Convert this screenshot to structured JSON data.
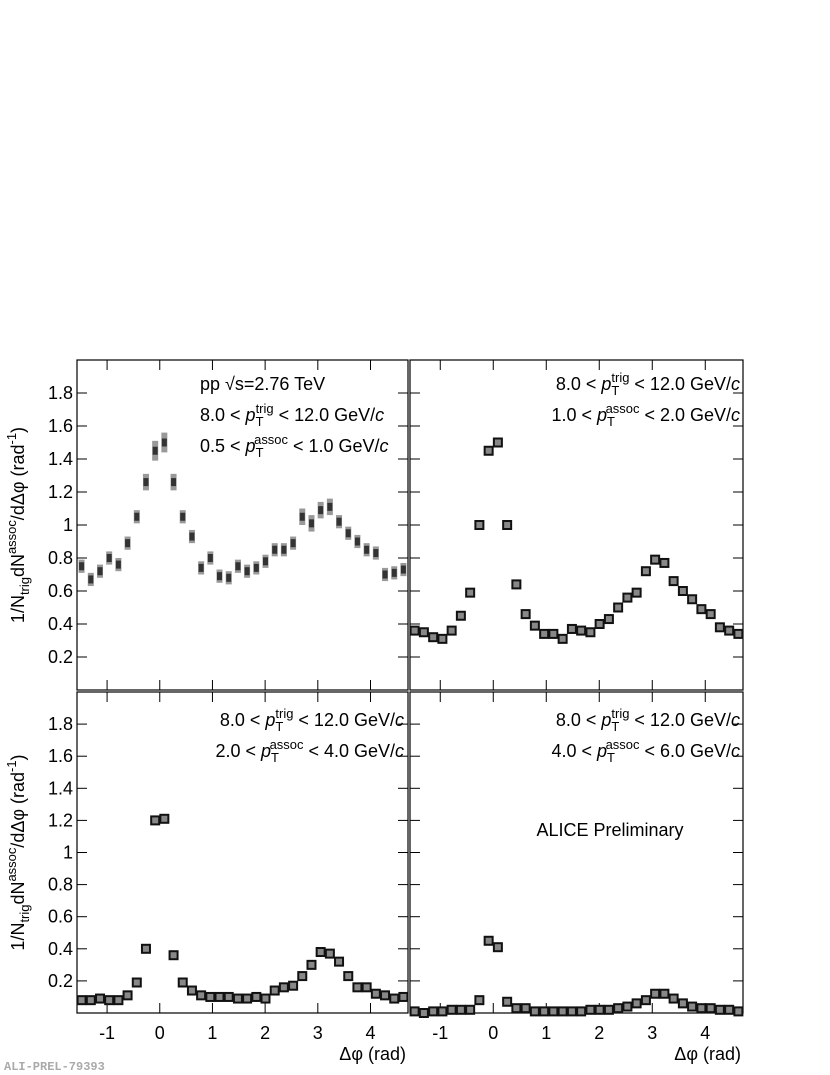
{
  "chart_data": [
    {
      "type": "scatter",
      "marker": "bar",
      "color": "#333333",
      "error_color": "#999999",
      "ylabel": [
        {
          "t": "1/N"
        },
        {
          "t": "trig",
          "s": "sub"
        },
        {
          "t": "dN"
        },
        {
          "t": "assoc",
          "s": "sup"
        },
        {
          "t": "/dΔφ (rad"
        },
        {
          "t": "-1",
          "s": "sup"
        },
        {
          "t": ")"
        }
      ],
      "annotations": [
        [
          {
            "t": "pp √s=2.76 TeV"
          }
        ],
        [
          {
            "t": "8.0 < "
          },
          {
            "t": "p",
            "s": "i"
          },
          {
            "t": "T",
            "s": "sub"
          },
          {
            "t": "trig",
            "s": "sup"
          },
          {
            "t": " < 12.0 GeV/"
          },
          {
            "t": "c",
            "s": "i"
          }
        ],
        [
          {
            "t": "0.5 < "
          },
          {
            "t": "p",
            "s": "i"
          },
          {
            "t": "T",
            "s": "sub"
          },
          {
            "t": "assoc",
            "s": "sup"
          },
          {
            "t": " < 1.0 GeV/"
          },
          {
            "t": "c",
            "s": "i"
          }
        ]
      ],
      "xlim": [
        -1.571,
        4.712
      ],
      "xticks": [
        -1,
        0,
        1,
        2,
        3,
        4
      ],
      "xtick_labels": false,
      "ylim": [
        0,
        2
      ],
      "yticks": [
        0.2,
        0.4,
        0.6,
        0.8,
        1,
        1.2,
        1.4,
        1.6,
        1.8
      ],
      "ytick_labels": true,
      "x": [
        -1.484,
        -1.309,
        -1.134,
        -0.96,
        -0.785,
        -0.611,
        -0.436,
        -0.262,
        -0.087,
        0.087,
        0.262,
        0.436,
        0.611,
        0.785,
        0.96,
        1.134,
        1.309,
        1.484,
        1.658,
        1.833,
        2.007,
        2.182,
        2.356,
        2.531,
        2.705,
        2.88,
        3.054,
        3.229,
        3.403,
        3.578,
        3.752,
        3.927,
        4.102,
        4.276,
        4.451,
        4.625
      ],
      "values": [
        0.75,
        0.67,
        0.72,
        0.8,
        0.76,
        0.89,
        1.05,
        1.26,
        1.45,
        1.5,
        1.26,
        1.05,
        0.93,
        0.74,
        0.8,
        0.69,
        0.68,
        0.75,
        0.72,
        0.74,
        0.78,
        0.85,
        0.85,
        0.89,
        1.05,
        1.01,
        1.09,
        1.11,
        1.02,
        0.95,
        0.9,
        0.85,
        0.83,
        0.7,
        0.71,
        0.73
      ],
      "errors": [
        0.04,
        0.04,
        0.04,
        0.04,
        0.04,
        0.04,
        0.04,
        0.05,
        0.06,
        0.06,
        0.05,
        0.04,
        0.04,
        0.04,
        0.04,
        0.04,
        0.04,
        0.04,
        0.04,
        0.04,
        0.04,
        0.04,
        0.04,
        0.04,
        0.05,
        0.05,
        0.05,
        0.05,
        0.04,
        0.04,
        0.04,
        0.04,
        0.04,
        0.04,
        0.04,
        0.04
      ]
    },
    {
      "type": "scatter",
      "marker": "square",
      "color": "#888888",
      "annotations": [
        [
          {
            "t": "8.0 < "
          },
          {
            "t": "p",
            "s": "i"
          },
          {
            "t": "T",
            "s": "sub"
          },
          {
            "t": "trig",
            "s": "sup"
          },
          {
            "t": " < 12.0 GeV/"
          },
          {
            "t": "c",
            "s": "i"
          }
        ],
        [
          {
            "t": "1.0 < "
          },
          {
            "t": "p",
            "s": "i"
          },
          {
            "t": "T",
            "s": "sub"
          },
          {
            "t": "assoc",
            "s": "sup"
          },
          {
            "t": " < 2.0 GeV/"
          },
          {
            "t": "c",
            "s": "i"
          }
        ]
      ],
      "xlim": [
        -1.571,
        4.712
      ],
      "xticks": [
        -1,
        0,
        1,
        2,
        3,
        4
      ],
      "xtick_labels": false,
      "ylim": [
        0,
        2
      ],
      "yticks": [
        0.2,
        0.4,
        0.6,
        0.8,
        1,
        1.2,
        1.4,
        1.6,
        1.8
      ],
      "ytick_labels": false,
      "x": [
        -1.484,
        -1.309,
        -1.134,
        -0.96,
        -0.785,
        -0.611,
        -0.436,
        -0.262,
        -0.087,
        0.087,
        0.262,
        0.436,
        0.611,
        0.785,
        0.96,
        1.134,
        1.309,
        1.484,
        1.658,
        1.833,
        2.007,
        2.182,
        2.356,
        2.531,
        2.705,
        2.88,
        3.054,
        3.229,
        3.403,
        3.578,
        3.752,
        3.927,
        4.102,
        4.276,
        4.451,
        4.625
      ],
      "values": [
        0.36,
        0.35,
        0.32,
        0.31,
        0.36,
        0.45,
        0.59,
        1.0,
        1.45,
        1.5,
        1.0,
        0.64,
        0.46,
        0.39,
        0.34,
        0.34,
        0.31,
        0.37,
        0.36,
        0.35,
        0.4,
        0.43,
        0.5,
        0.56,
        0.59,
        0.72,
        0.79,
        0.77,
        0.66,
        0.6,
        0.55,
        0.49,
        0.46,
        0.38,
        0.36,
        0.34
      ]
    },
    {
      "type": "scatter",
      "marker": "square",
      "color": "#888888",
      "ylabel": [
        {
          "t": "1/N"
        },
        {
          "t": "trig",
          "s": "sub"
        },
        {
          "t": "dN"
        },
        {
          "t": "assoc",
          "s": "sup"
        },
        {
          "t": "/dΔφ (rad"
        },
        {
          "t": "-1",
          "s": "sup"
        },
        {
          "t": ")"
        }
      ],
      "xlabel": "Δφ (rad)",
      "annotations": [
        [
          {
            "t": "8.0 < "
          },
          {
            "t": "p",
            "s": "i"
          },
          {
            "t": "T",
            "s": "sub"
          },
          {
            "t": "trig",
            "s": "sup"
          },
          {
            "t": " < 12.0 GeV/"
          },
          {
            "t": "c",
            "s": "i"
          }
        ],
        [
          {
            "t": "2.0 < "
          },
          {
            "t": "p",
            "s": "i"
          },
          {
            "t": "T",
            "s": "sub"
          },
          {
            "t": "assoc",
            "s": "sup"
          },
          {
            "t": " < 4.0 GeV/"
          },
          {
            "t": "c",
            "s": "i"
          }
        ]
      ],
      "xlim": [
        -1.571,
        4.712
      ],
      "xticks": [
        -1,
        0,
        1,
        2,
        3,
        4
      ],
      "xtick_labels": true,
      "ylim": [
        0,
        2
      ],
      "yticks": [
        0.2,
        0.4,
        0.6,
        0.8,
        1,
        1.2,
        1.4,
        1.6,
        1.8
      ],
      "ytick_labels": true,
      "x": [
        -1.484,
        -1.309,
        -1.134,
        -0.96,
        -0.785,
        -0.611,
        -0.436,
        -0.262,
        -0.087,
        0.087,
        0.262,
        0.436,
        0.611,
        0.785,
        0.96,
        1.134,
        1.309,
        1.484,
        1.658,
        1.833,
        2.007,
        2.182,
        2.356,
        2.531,
        2.705,
        2.88,
        3.054,
        3.229,
        3.403,
        3.578,
        3.752,
        3.927,
        4.102,
        4.276,
        4.451,
        4.625
      ],
      "values": [
        0.08,
        0.08,
        0.09,
        0.08,
        0.08,
        0.11,
        0.19,
        0.4,
        1.2,
        1.21,
        0.36,
        0.19,
        0.14,
        0.11,
        0.1,
        0.1,
        0.1,
        0.09,
        0.09,
        0.1,
        0.09,
        0.14,
        0.16,
        0.17,
        0.23,
        0.3,
        0.38,
        0.37,
        0.32,
        0.23,
        0.16,
        0.16,
        0.12,
        0.11,
        0.09,
        0.1
      ]
    },
    {
      "type": "scatter",
      "marker": "square",
      "color": "#888888",
      "xlabel": "Δφ (rad)",
      "label": "ALICE Preliminary",
      "annotations": [
        [
          {
            "t": "8.0 < "
          },
          {
            "t": "p",
            "s": "i"
          },
          {
            "t": "T",
            "s": "sub"
          },
          {
            "t": "trig",
            "s": "sup"
          },
          {
            "t": " < 12.0 GeV/"
          },
          {
            "t": "c",
            "s": "i"
          }
        ],
        [
          {
            "t": "4.0 < "
          },
          {
            "t": "p",
            "s": "i"
          },
          {
            "t": "T",
            "s": "sub"
          },
          {
            "t": "assoc",
            "s": "sup"
          },
          {
            "t": " < 6.0 GeV/"
          },
          {
            "t": "c",
            "s": "i"
          }
        ]
      ],
      "xlim": [
        -1.571,
        4.712
      ],
      "xticks": [
        -1,
        0,
        1,
        2,
        3,
        4
      ],
      "xtick_labels": true,
      "ylim": [
        0,
        2
      ],
      "yticks": [
        0.2,
        0.4,
        0.6,
        0.8,
        1,
        1.2,
        1.4,
        1.6,
        1.8
      ],
      "ytick_labels": false,
      "x": [
        -1.484,
        -1.309,
        -1.134,
        -0.96,
        -0.785,
        -0.611,
        -0.436,
        -0.262,
        -0.087,
        0.087,
        0.262,
        0.436,
        0.611,
        0.785,
        0.96,
        1.134,
        1.309,
        1.484,
        1.658,
        1.833,
        2.007,
        2.182,
        2.356,
        2.531,
        2.705,
        2.88,
        3.054,
        3.229,
        3.403,
        3.578,
        3.752,
        3.927,
        4.102,
        4.276,
        4.451,
        4.625
      ],
      "values": [
        0.01,
        0.0,
        0.01,
        0.01,
        0.02,
        0.02,
        0.02,
        0.08,
        0.45,
        0.41,
        0.07,
        0.03,
        0.03,
        0.01,
        0.01,
        0.01,
        0.01,
        0.01,
        0.01,
        0.02,
        0.02,
        0.02,
        0.03,
        0.04,
        0.06,
        0.08,
        0.12,
        0.12,
        0.09,
        0.06,
        0.04,
        0.03,
        0.03,
        0.02,
        0.02,
        0.01
      ]
    }
  ],
  "footer": "ALI-PREL-79393"
}
